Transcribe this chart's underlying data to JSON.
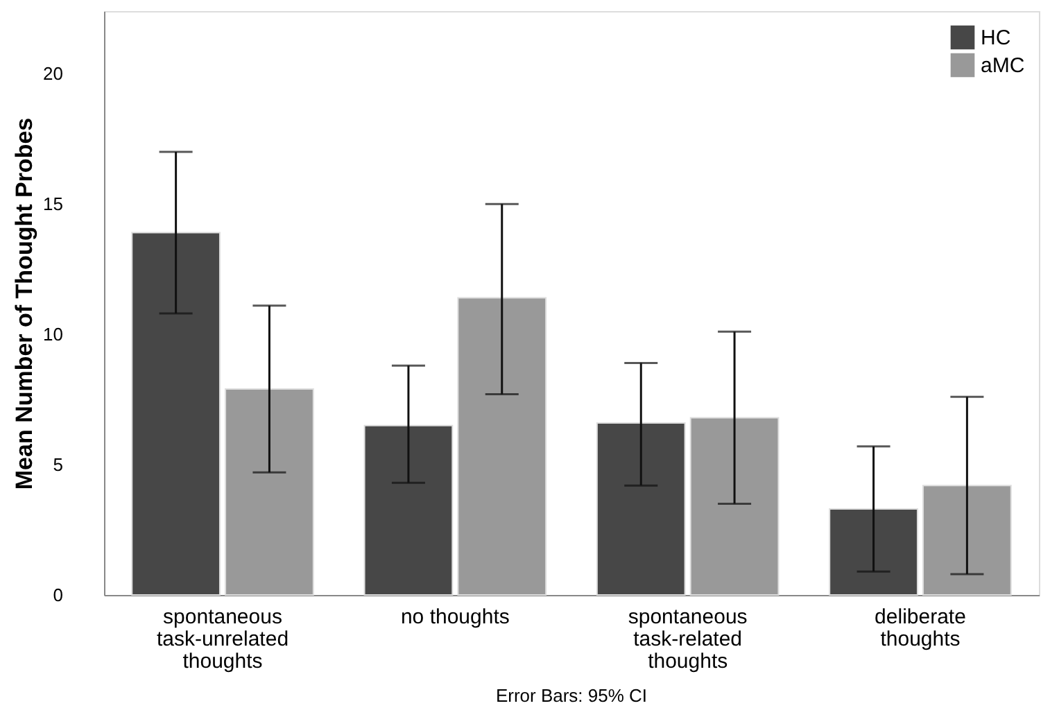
{
  "chart_data": {
    "type": "bar",
    "ylabel": "Mean Number of Thought Probes",
    "categories": [
      "spontaneous\ntask-unrelated\nthoughts",
      "no thoughts",
      "spontaneous\ntask-related\nthoughts",
      "deliberate\nthoughts"
    ],
    "series": [
      {
        "name": "HC",
        "color": "#474747",
        "values": [
          13.9,
          6.5,
          6.6,
          3.3
        ],
        "errors": [
          [
            10.8,
            17.0
          ],
          [
            4.3,
            8.8
          ],
          [
            4.2,
            8.9
          ],
          [
            0.9,
            5.7
          ]
        ]
      },
      {
        "name": "aMC",
        "color": "#999999",
        "values": [
          7.9,
          11.4,
          6.8,
          4.2
        ],
        "errors": [
          [
            4.7,
            11.1
          ],
          [
            7.7,
            15.0
          ],
          [
            3.5,
            10.1
          ],
          [
            0.8,
            7.6
          ]
        ]
      }
    ],
    "ylim": [
      0,
      22.4
    ],
    "yticks": [
      0,
      5,
      10,
      15,
      20
    ],
    "grid": false,
    "legend": "top right",
    "annotations": [
      "Error Bars: 95% CI"
    ]
  }
}
